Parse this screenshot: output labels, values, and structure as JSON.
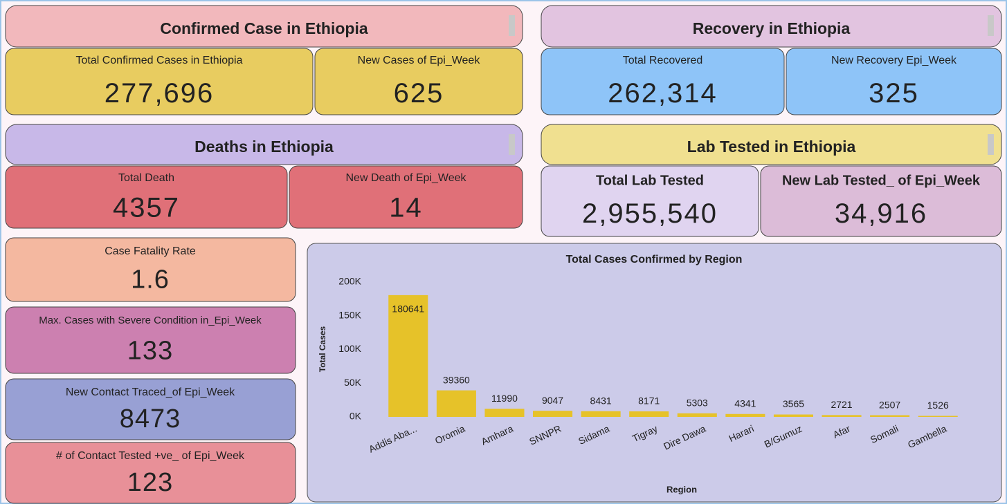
{
  "sections": [
    {
      "title": "Confirmed Case in Ethiopia",
      "cards": [
        {
          "label": "Total Confirmed Cases in Ethiopia",
          "value": "277,696"
        },
        {
          "label": "New Cases of Epi_Week",
          "value": "625"
        }
      ]
    },
    {
      "title": "Recovery in Ethiopia",
      "cards": [
        {
          "label": "Total Recovered",
          "value": "262,314"
        },
        {
          "label": "New Recovery Epi_Week",
          "value": "325"
        }
      ]
    },
    {
      "title": "Deaths in Ethiopia",
      "cards": [
        {
          "label": "Total Death",
          "value": "4357"
        },
        {
          "label": "New Death of Epi_Week",
          "value": "14"
        }
      ]
    },
    {
      "title": "Lab Tested  in Ethiopia",
      "cards": [
        {
          "label": "Total Lab Tested",
          "value": "2,955,540"
        },
        {
          "label": "New Lab Tested_ of Epi_Week",
          "value": "34,916"
        }
      ]
    }
  ],
  "indicators": [
    {
      "label": "Case Fatality Rate",
      "value": "1.6"
    },
    {
      "label": "Max. Cases with Severe Condition in_Epi_Week",
      "value": "133"
    },
    {
      "label": "New Contact Traced_of Epi_Week",
      "value": "8473"
    },
    {
      "label": "# of Contact Tested +ve_ of Epi_Week",
      "value": "123"
    }
  ],
  "chart_data": {
    "type": "bar",
    "title": "Total Cases Confirmed by Region",
    "x_label": "Region",
    "y_label": "Total Cases",
    "categories": [
      "Addis Aba...",
      "Oromia",
      "Amhara",
      "SNNPR",
      "Sidama",
      "Tigray",
      "Dire Dawa",
      "Harari",
      "B/Gumuz",
      "Afar",
      "Somali",
      "Gambella"
    ],
    "values": [
      180641,
      39360,
      11990,
      9047,
      8431,
      8171,
      5303,
      4341,
      3565,
      2721,
      2507,
      1526
    ],
    "color": "#e6c229",
    "ylim": [
      0,
      200000
    ],
    "yticks": [
      {
        "value": 0,
        "label": "0K"
      },
      {
        "value": 50000,
        "label": "50K"
      },
      {
        "value": 100000,
        "label": "100K"
      },
      {
        "value": 150000,
        "label": "150K"
      },
      {
        "value": 200000,
        "label": "200K"
      }
    ],
    "grid": false
  }
}
